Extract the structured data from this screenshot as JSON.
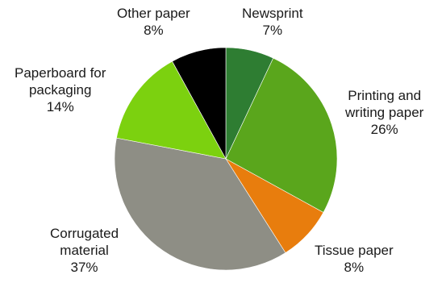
{
  "chart_data": {
    "type": "pie",
    "start_angle_deg": 0,
    "direction": "clockwise",
    "slices": [
      {
        "label": "Newsprint",
        "label_lines": [
          "Newsprint"
        ],
        "value": 7,
        "value_label": "7%",
        "color": "#2e7d32"
      },
      {
        "label": "Printing and writing paper",
        "label_lines": [
          "Printing and",
          "writing paper"
        ],
        "value": 26,
        "value_label": "26%",
        "color": "#5aa61c"
      },
      {
        "label": "Tissue paper",
        "label_lines": [
          "Tissue paper"
        ],
        "value": 8,
        "value_label": "8%",
        "color": "#e87d0d"
      },
      {
        "label": "Corrugated material",
        "label_lines": [
          "Corrugated",
          "material"
        ],
        "value": 37,
        "value_label": "37%",
        "color": "#8e8e85"
      },
      {
        "label": "Paperboard for packaging",
        "label_lines": [
          "Paperboard for",
          "packaging"
        ],
        "value": 14,
        "value_label": "14%",
        "color": "#7cd10f"
      },
      {
        "label": "Other paper",
        "label_lines": [
          "Other paper"
        ],
        "value": 8,
        "value_label": "8%",
        "color": "#000000"
      }
    ]
  }
}
